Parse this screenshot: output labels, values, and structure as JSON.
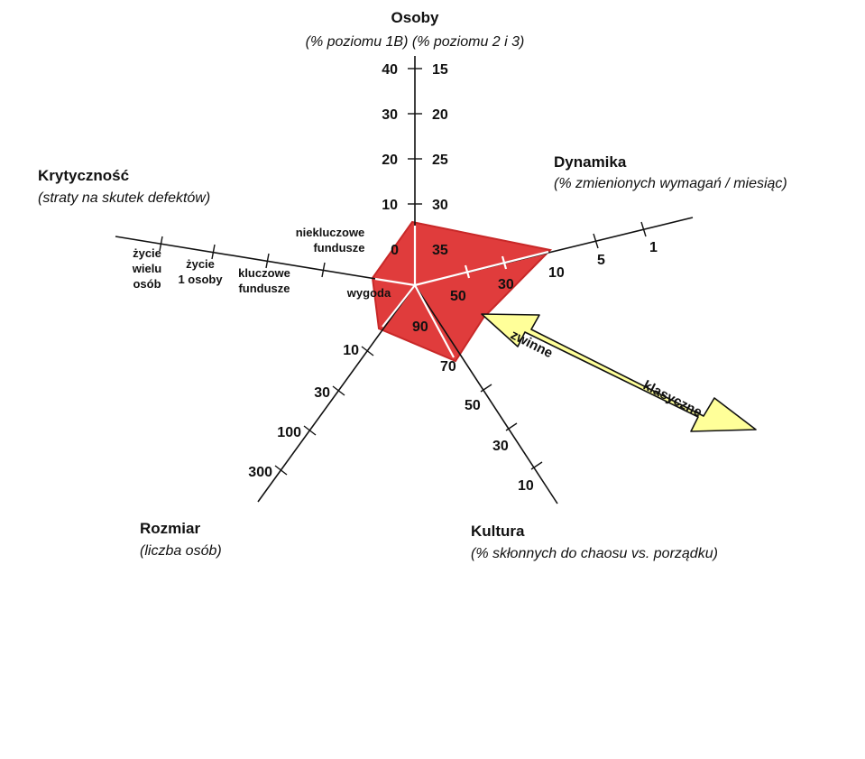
{
  "axes": {
    "osoby": {
      "title": "Osoby",
      "subtitle": "(% poziomu 1B) (% poziomu 2 i 3)",
      "left_ticks": [
        "40",
        "30",
        "20",
        "10",
        "0"
      ],
      "right_ticks": [
        "15",
        "20",
        "25",
        "30",
        "35"
      ]
    },
    "dynamika": {
      "title": "Dynamika",
      "subtitle": "(% zmienionych wymagań / miesiąc)",
      "ticks": [
        "1",
        "5",
        "10",
        "30",
        "50"
      ]
    },
    "krytycznosc": {
      "title": "Krytyczność",
      "subtitle": "(straty na skutek defektów)",
      "ticks": {
        "zycie_wielu": [
          "życie",
          "wielu",
          "osób"
        ],
        "zycie_1": [
          "życie",
          "1 osoby"
        ],
        "kluczowe": [
          "kluczowe",
          "fundusze"
        ],
        "niekluczowe": [
          "niekluczowe",
          "fundusze"
        ],
        "wygoda": "wygoda"
      }
    },
    "rozmiar": {
      "title": "Rozmiar",
      "subtitle": "(liczba osób)",
      "ticks": [
        "300",
        "100",
        "30",
        "10"
      ]
    },
    "kultura": {
      "title": "Kultura",
      "subtitle": "(% skłonnych do chaosu vs. porządku)",
      "ticks": [
        "10",
        "30",
        "50",
        "70",
        "90"
      ]
    }
  },
  "arrow": {
    "label_agile": "zwinne",
    "label_classic": "klasyczne",
    "color": "#ffff99"
  },
  "region_color": "#e03c3c"
}
